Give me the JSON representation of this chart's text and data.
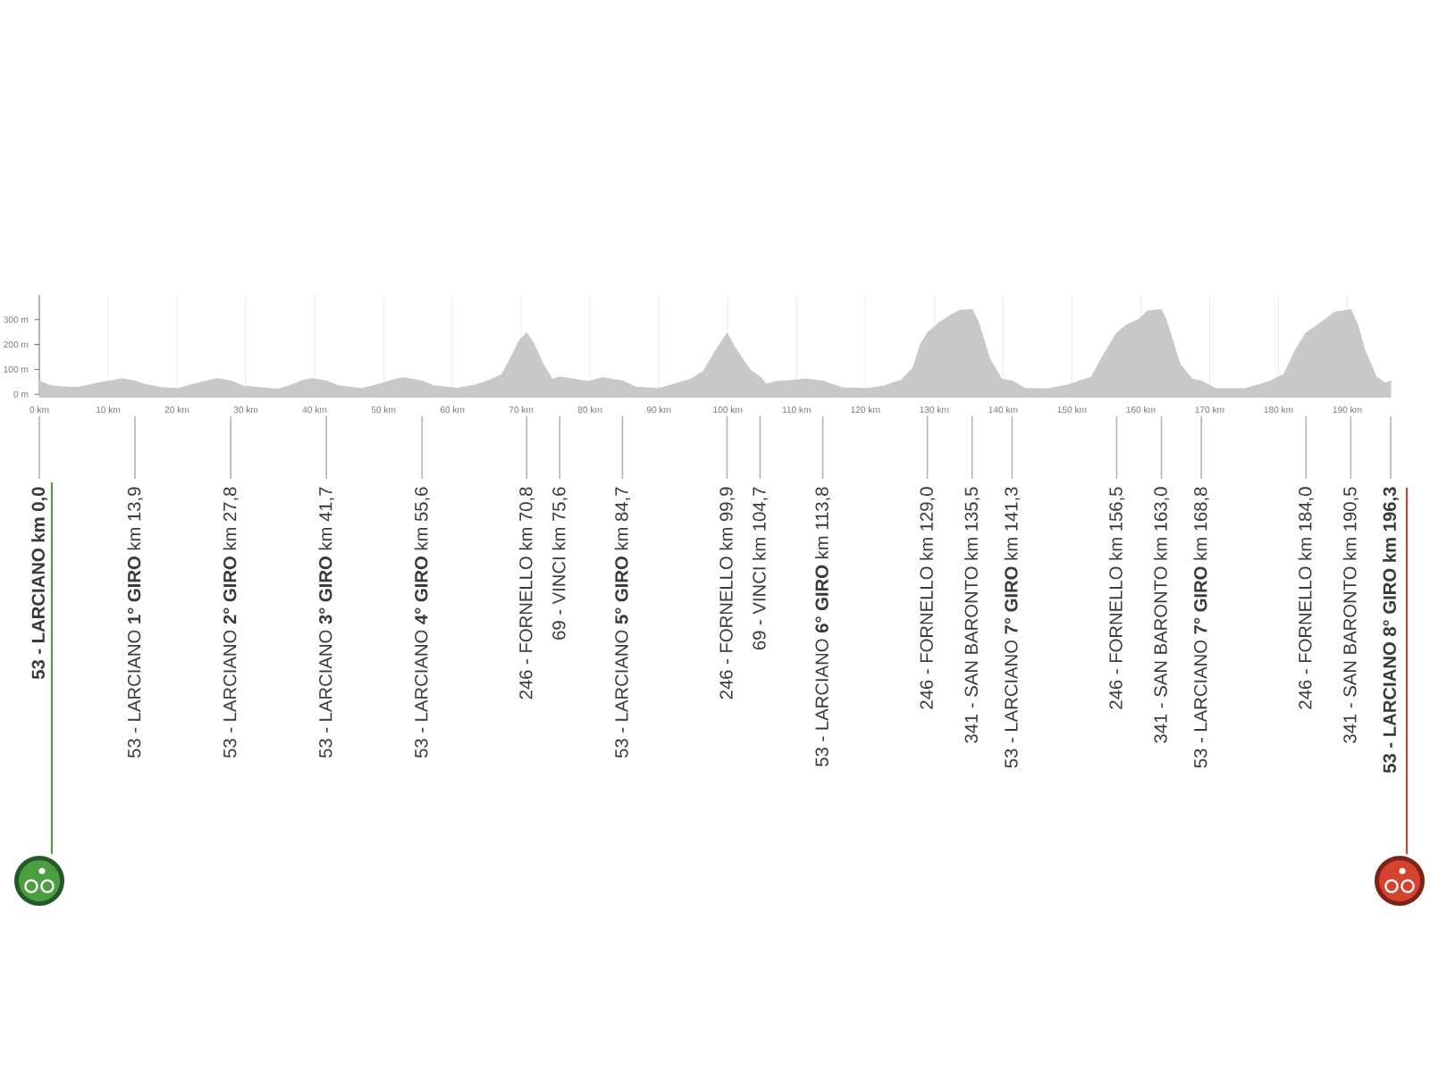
{
  "chart_data": {
    "type": "area",
    "color": "#c8c8c8",
    "x": [
      0,
      1.5,
      3,
      5.5,
      8,
      10.7,
      12,
      13.9,
      15,
      17.6,
      20.2,
      21.9,
      24,
      25.8,
      27.8,
      29.7,
      33.1,
      34.8,
      36.6,
      38.3,
      39.6,
      41.7,
      43.4,
      46.9,
      49.5,
      51.6,
      52.9,
      55.6,
      57.2,
      60.7,
      63.3,
      65.4,
      67.2,
      68.4,
      69.7,
      70.8,
      71.8,
      73.2,
      74.5,
      75.6,
      77.5,
      79.7,
      81.8,
      84.7,
      86.6,
      90,
      92.6,
      94.7,
      96.5,
      97.8,
      99.9,
      101.1,
      103.3,
      104.7,
      105.6,
      107.1,
      109.7,
      111.4,
      113.8,
      116.6,
      120.1,
      122.6,
      125.2,
      126.9,
      128,
      129,
      130.8,
      132.5,
      133.8,
      135.5,
      136.4,
      138.1,
      139.8,
      141.3,
      143.3,
      146.7,
      149.3,
      152.8,
      154.5,
      156.5,
      158,
      159.7,
      161,
      163,
      163.8,
      165.7,
      167.5,
      168.8,
      170.9,
      175.2,
      178.7,
      180.8,
      182.5,
      184,
      186.5,
      188.2,
      190.5,
      191.5,
      192.5,
      194.2,
      195.5,
      196.3
    ],
    "values": [
      53,
      35,
      30,
      27,
      42,
      56,
      62,
      53,
      42,
      27,
      22,
      37,
      51,
      63,
      53,
      32,
      24,
      20,
      37,
      56,
      63,
      53,
      34,
      22,
      41,
      59,
      66,
      53,
      34,
      24,
      37,
      56,
      80,
      141,
      215,
      246,
      205,
      120,
      60,
      69,
      61,
      51,
      66,
      53,
      29,
      22,
      44,
      61,
      93,
      154,
      246,
      185,
      95,
      69,
      40,
      51,
      56,
      61,
      53,
      26,
      22,
      32,
      56,
      105,
      200,
      246,
      290,
      320,
      338,
      341,
      290,
      140,
      60,
      53,
      22,
      22,
      37,
      68,
      154,
      246,
      280,
      300,
      335,
      341,
      290,
      120,
      60,
      53,
      22,
      22,
      51,
      80,
      180,
      246,
      295,
      330,
      341,
      280,
      180,
      70,
      44,
      53
    ],
    "xlim": [
      0,
      196.3
    ],
    "xticks": [
      {
        "value": 0,
        "label": "0 km"
      },
      {
        "value": 10,
        "label": "10 km"
      },
      {
        "value": 20,
        "label": "20 km"
      },
      {
        "value": 30,
        "label": "30 km"
      },
      {
        "value": 40,
        "label": "40 km"
      },
      {
        "value": 50,
        "label": "50 km"
      },
      {
        "value": 60,
        "label": "60 km"
      },
      {
        "value": 70,
        "label": "70 km"
      },
      {
        "value": 80,
        "label": "80 km"
      },
      {
        "value": 90,
        "label": "90 km"
      },
      {
        "value": 100,
        "label": "100 km"
      },
      {
        "value": 110,
        "label": "110 km"
      },
      {
        "value": 120,
        "label": "120 km"
      },
      {
        "value": 130,
        "label": "130 km"
      },
      {
        "value": 140,
        "label": "140 km"
      },
      {
        "value": 150,
        "label": "150 km"
      },
      {
        "value": 160,
        "label": "160 km"
      },
      {
        "value": 170,
        "label": "170 km"
      },
      {
        "value": 180,
        "label": "180 km"
      },
      {
        "value": 190,
        "label": "190 km"
      }
    ],
    "ylim": [
      -10,
      400
    ],
    "yticks": [
      {
        "value": 0,
        "label": "0 m"
      },
      {
        "value": 100,
        "label": "100 m"
      },
      {
        "value": 200,
        "label": "200 m"
      },
      {
        "value": 300,
        "label": "300 m"
      }
    ],
    "grid": "x",
    "annotations": [
      {
        "text": "53 - LARCIANO km 0,0",
        "x": 0
      },
      {
        "text": "53 - LARCIANO **1° GIRO** km 13,9",
        "x": 13.9
      },
      {
        "text": "53 - LARCIANO **2° GIRO** km 27,8",
        "x": 27.8
      },
      {
        "text": "53 - LARCIANO **3° GIRO** km 41,7",
        "x": 41.7
      },
      {
        "text": "53 - LARCIANO **4° GIRO** km 55,6",
        "x": 55.6
      },
      {
        "text": "246 - FORNELLO km 70,8",
        "x": 70.8
      },
      {
        "text": "69 - VINCI km 75,6",
        "x": 75.6
      },
      {
        "text": "53 - LARCIANO **5° GIRO** km 84,7",
        "x": 84.7
      },
      {
        "text": "246 - FORNELLO km 99,9",
        "x": 99.9
      },
      {
        "text": "69 - VINCI km 104,7",
        "x": 104.7
      },
      {
        "text": "53 - LARCIANO **6° GIRO** km 113,8",
        "x": 113.8
      },
      {
        "text": "246 - FORNELLO km 129,0",
        "x": 129.0
      },
      {
        "text": "341 - SAN BARONTO km 135,5",
        "x": 135.5
      },
      {
        "text": "53 - LARCIANO **7° GIRO** km 141,3",
        "x": 141.3
      },
      {
        "text": "246 - FORNELLO km 156,5",
        "x": 156.5
      },
      {
        "text": "341 - SAN BARONTO km 163,0",
        "x": 163.0
      },
      {
        "text": "53 - LARCIANO **7° GIRO** km 168,8",
        "x": 168.8
      },
      {
        "text": "246 - FORNELLO km 184,0",
        "x": 184.0
      },
      {
        "text": "341 - SAN BARONTO km 190,5",
        "x": 190.5
      },
      {
        "text": "53 - LARCIANO 8° GIRO km 196,3",
        "x": 196.3
      }
    ]
  }
}
